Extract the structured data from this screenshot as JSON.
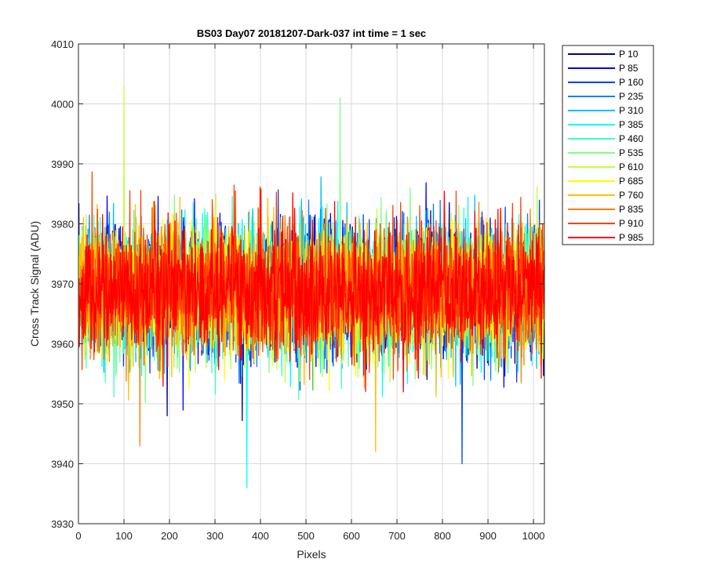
{
  "chart_data": {
    "type": "line",
    "title": "BS03 Day07 20181207-Dark-037 int time = 1 sec",
    "xlabel": "Pixels",
    "ylabel": "Cross Track Signal (ADU)",
    "xlim": [
      0,
      1024
    ],
    "ylim": [
      3930,
      4010
    ],
    "xticks": [
      0,
      100,
      200,
      300,
      400,
      500,
      600,
      700,
      800,
      900,
      1000
    ],
    "yticks": [
      3930,
      3940,
      3950,
      3960,
      3970,
      3980,
      3990,
      4000,
      4010
    ],
    "grid": true,
    "legend_position": "outside-right",
    "series_style": "noisy dark frame signal, roughly 3970 ADU mean, about 5 ADU standard deviation, 1024 pixels",
    "series": [
      {
        "name": "P 10",
        "color": "#00008f",
        "mean": 3969
      },
      {
        "name": "P 85",
        "color": "#0000ff",
        "mean": 3969
      },
      {
        "name": "P 160",
        "color": "#0040ff",
        "mean": 3969
      },
      {
        "name": "P 235",
        "color": "#0080ff",
        "mean": 3969
      },
      {
        "name": "P 310",
        "color": "#00bfff",
        "mean": 3969
      },
      {
        "name": "P 385",
        "color": "#00ffff",
        "mean": 3969
      },
      {
        "name": "P 460",
        "color": "#40ffbf",
        "mean": 3969
      },
      {
        "name": "P 535",
        "color": "#80ff80",
        "mean": 3969
      },
      {
        "name": "P 610",
        "color": "#bfff40",
        "mean": 3969
      },
      {
        "name": "P 685",
        "color": "#ffff00",
        "mean": 3969
      },
      {
        "name": "P 760",
        "color": "#ffbf00",
        "mean": 3969
      },
      {
        "name": "P 835",
        "color": "#ff8000",
        "mean": 3969
      },
      {
        "name": "P 910",
        "color": "#ff4000",
        "mean": 3969
      },
      {
        "name": "P 985",
        "color": "#ff0000",
        "mean": 3969
      }
    ],
    "notable_points": [
      {
        "series": "P 610",
        "x": 100,
        "y": 4003
      },
      {
        "series": "P 535",
        "x": 575,
        "y": 4001
      },
      {
        "series": "P 385",
        "x": 370,
        "y": 3936
      },
      {
        "series": "P 160",
        "x": 843,
        "y": 3940
      },
      {
        "series": "P 760",
        "x": 653,
        "y": 3942
      },
      {
        "series": "P 835",
        "x": 135,
        "y": 3943
      }
    ]
  }
}
